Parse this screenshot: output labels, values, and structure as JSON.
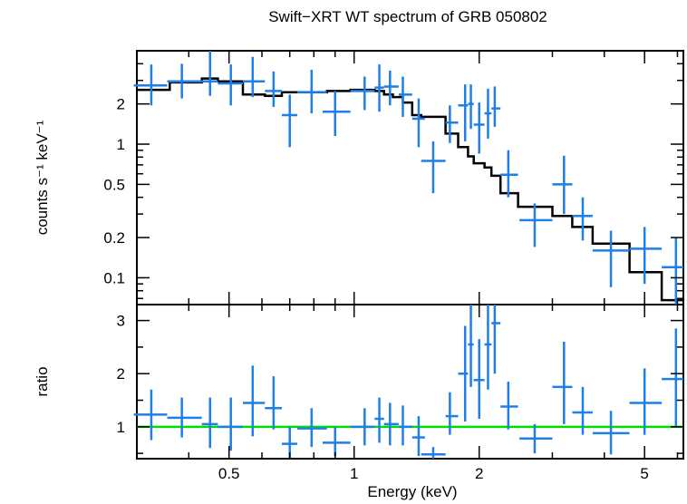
{
  "title": "Swift−XRT WT spectrum of GRB 050802",
  "colors": {
    "data": "#1e7fe6",
    "model": "#000000",
    "unity": "#00e000",
    "axes": "#000000"
  },
  "chart_data": [
    {
      "type": "scatter",
      "panel": "spectrum",
      "title": "Swift−XRT WT spectrum of GRB 050802",
      "ylabel": "counts s⁻¹ keV⁻¹",
      "xscale": "log",
      "yscale": "log",
      "xlim": [
        0.3,
        6.2
      ],
      "ylim": [
        0.063,
        5.0
      ],
      "yticks": [
        0.1,
        0.2,
        0.5,
        1,
        2
      ],
      "yticklabels": [
        "0.1",
        "0.2",
        "0.5",
        "1",
        "2"
      ],
      "series": [
        {
          "kind": "errorbar",
          "points": [
            {
              "x": 0.325,
              "xerr": [
                0.295,
                0.355
              ],
              "y": 2.75,
              "yerr": [
                1.95,
                3.95
              ]
            },
            {
              "x": 0.385,
              "xerr": [
                0.355,
                0.43
              ],
              "y": 2.95,
              "yerr": [
                2.2,
                4.0
              ]
            },
            {
              "x": 0.45,
              "xerr": [
                0.43,
                0.47
              ],
              "y": 2.95,
              "yerr": [
                2.3,
                5.0
              ]
            },
            {
              "x": 0.505,
              "xerr": [
                0.47,
                0.54
              ],
              "y": 2.85,
              "yerr": [
                1.95,
                3.95
              ]
            },
            {
              "x": 0.57,
              "xerr": [
                0.54,
                0.61
              ],
              "y": 2.95,
              "yerr": [
                2.25,
                4.5
              ]
            },
            {
              "x": 0.64,
              "xerr": [
                0.61,
                0.67
              ],
              "y": 2.5,
              "yerr": [
                1.9,
                3.5
              ]
            },
            {
              "x": 0.7,
              "xerr": [
                0.67,
                0.73
              ],
              "y": 1.65,
              "yerr": [
                0.95,
                2.35
              ]
            },
            {
              "x": 0.79,
              "xerr": [
                0.73,
                0.86
              ],
              "y": 2.45,
              "yerr": [
                1.7,
                3.6
              ]
            },
            {
              "x": 0.9,
              "xerr": [
                0.84,
                0.98
              ],
              "y": 1.75,
              "yerr": [
                1.15,
                2.5
              ]
            },
            {
              "x": 1.06,
              "xerr": [
                0.98,
                1.12
              ],
              "y": 2.5,
              "yerr": [
                1.8,
                3.2
              ]
            },
            {
              "x": 1.15,
              "xerr": [
                1.12,
                1.18
              ],
              "y": 2.65,
              "yerr": [
                1.75,
                3.95
              ]
            },
            {
              "x": 1.22,
              "xerr": [
                1.18,
                1.28
              ],
              "y": 2.7,
              "yerr": [
                1.95,
                3.55
              ]
            },
            {
              "x": 1.31,
              "xerr": [
                1.28,
                1.38
              ],
              "y": 2.35,
              "yerr": [
                1.6,
                3.2
              ]
            },
            {
              "x": 1.43,
              "xerr": [
                1.38,
                1.48
              ],
              "y": 1.55,
              "yerr": [
                0.95,
                2.2
              ]
            },
            {
              "x": 1.55,
              "xerr": [
                1.45,
                1.66
              ],
              "y": 0.75,
              "yerr": [
                0.43,
                1.05
              ]
            },
            {
              "x": 1.7,
              "xerr": [
                1.66,
                1.78
              ],
              "y": 1.45,
              "yerr": [
                1.02,
                1.95
              ]
            },
            {
              "x": 1.85,
              "xerr": [
                1.78,
                1.88
              ],
              "y": 1.95,
              "yerr": [
                1.05,
                2.8
              ]
            },
            {
              "x": 1.91,
              "xerr": [
                1.88,
                1.94
              ],
              "y": 2.0,
              "yerr": [
                1.3,
                2.8
              ]
            },
            {
              "x": 2.0,
              "xerr": [
                1.94,
                2.06
              ],
              "y": 1.4,
              "yerr": [
                0.85,
                2.05
              ]
            },
            {
              "x": 2.1,
              "xerr": [
                2.06,
                2.14
              ],
              "y": 1.7,
              "yerr": [
                1.1,
                2.6
              ]
            },
            {
              "x": 2.18,
              "xerr": [
                2.14,
                2.25
              ],
              "y": 1.85,
              "yerr": [
                1.35,
                2.7
              ]
            },
            {
              "x": 2.35,
              "xerr": [
                2.25,
                2.48
              ],
              "y": 0.59,
              "yerr": [
                0.4,
                0.9
              ]
            },
            {
              "x": 2.72,
              "xerr": [
                2.5,
                3.0
              ],
              "y": 0.27,
              "yerr": [
                0.17,
                0.36
              ]
            },
            {
              "x": 3.2,
              "xerr": [
                3.0,
                3.35
              ],
              "y": 0.5,
              "yerr": [
                0.3,
                0.82
              ]
            },
            {
              "x": 3.55,
              "xerr": [
                3.35,
                3.75
              ],
              "y": 0.29,
              "yerr": [
                0.19,
                0.4
              ]
            },
            {
              "x": 4.15,
              "xerr": [
                3.75,
                4.6
              ],
              "y": 0.16,
              "yerr": [
                0.085,
                0.225
              ]
            },
            {
              "x": 5.0,
              "xerr": [
                4.6,
                5.5
              ],
              "y": 0.165,
              "yerr": [
                0.09,
                0.24
              ]
            },
            {
              "x": 5.95,
              "xerr": [
                5.5,
                6.2
              ],
              "y": 0.12,
              "yerr": [
                0.063,
                0.2
              ]
            }
          ]
        },
        {
          "kind": "model-step",
          "edges": [
            0.3,
            0.34,
            0.36,
            0.43,
            0.47,
            0.54,
            0.61,
            0.67,
            0.73,
            0.86,
            0.98,
            1.12,
            1.18,
            1.24,
            1.31,
            1.38,
            1.45,
            1.66,
            1.78,
            1.88,
            1.94,
            2.06,
            2.14,
            2.25,
            2.48,
            3.0,
            3.35,
            3.75,
            4.6,
            5.5,
            6.2
          ],
          "values": [
            2.55,
            2.55,
            2.9,
            3.1,
            2.95,
            2.35,
            2.3,
            2.45,
            2.45,
            2.5,
            2.55,
            2.5,
            2.35,
            2.25,
            2.05,
            1.65,
            1.6,
            1.2,
            0.95,
            0.81,
            0.72,
            0.67,
            0.58,
            0.43,
            0.34,
            0.29,
            0.24,
            0.18,
            0.11,
            0.068
          ]
        }
      ]
    },
    {
      "type": "scatter",
      "panel": "ratio",
      "xlabel": "Energy (keV)",
      "ylabel": "ratio",
      "xscale": "log",
      "yscale": "linear",
      "xlim": [
        0.3,
        6.2
      ],
      "ylim": [
        0.4,
        3.3
      ],
      "xticks": [
        0.5,
        1,
        2,
        5
      ],
      "xticklabels": [
        "0.5",
        "1",
        "2",
        "5"
      ],
      "yticks": [
        1,
        2,
        3
      ],
      "yticklabels": [
        "1",
        "2",
        "3"
      ],
      "reference_line": 1.0,
      "series": [
        {
          "kind": "errorbar",
          "points": [
            {
              "x": 0.325,
              "xerr": [
                0.295,
                0.355
              ],
              "y": 1.23,
              "yerr": [
                0.75,
                1.7
              ]
            },
            {
              "x": 0.385,
              "xerr": [
                0.355,
                0.43
              ],
              "y": 1.17,
              "yerr": [
                0.8,
                1.55
              ]
            },
            {
              "x": 0.45,
              "xerr": [
                0.43,
                0.47
              ],
              "y": 1.05,
              "yerr": [
                0.6,
                1.55
              ]
            },
            {
              "x": 0.505,
              "xerr": [
                0.47,
                0.54
              ],
              "y": 1.0,
              "yerr": [
                0.55,
                1.55
              ]
            },
            {
              "x": 0.57,
              "xerr": [
                0.54,
                0.61
              ],
              "y": 1.45,
              "yerr": [
                0.82,
                2.15
              ]
            },
            {
              "x": 0.64,
              "xerr": [
                0.61,
                0.67
              ],
              "y": 1.35,
              "yerr": [
                0.95,
                1.95
              ]
            },
            {
              "x": 0.7,
              "xerr": [
                0.67,
                0.73
              ],
              "y": 0.68,
              "yerr": [
                0.4,
                1.0
              ]
            },
            {
              "x": 0.79,
              "xerr": [
                0.73,
                0.86
              ],
              "y": 0.97,
              "yerr": [
                0.62,
                1.35
              ]
            },
            {
              "x": 0.9,
              "xerr": [
                0.84,
                0.98
              ],
              "y": 0.7,
              "yerr": [
                0.45,
                1.0
              ]
            },
            {
              "x": 1.06,
              "xerr": [
                0.98,
                1.12
              ],
              "y": 1.0,
              "yerr": [
                0.65,
                1.35
              ]
            },
            {
              "x": 1.15,
              "xerr": [
                1.12,
                1.18
              ],
              "y": 1.15,
              "yerr": [
                0.7,
                1.55
              ]
            },
            {
              "x": 1.22,
              "xerr": [
                1.18,
                1.28
              ],
              "y": 1.05,
              "yerr": [
                0.65,
                1.45
              ]
            },
            {
              "x": 1.31,
              "xerr": [
                1.28,
                1.38
              ],
              "y": 1.0,
              "yerr": [
                0.65,
                1.4
              ]
            },
            {
              "x": 1.43,
              "xerr": [
                1.38,
                1.48
              ],
              "y": 0.8,
              "yerr": [
                0.45,
                1.2
              ]
            },
            {
              "x": 1.55,
              "xerr": [
                1.45,
                1.66
              ],
              "y": 0.48,
              "yerr": [
                0.4,
                0.62
              ]
            },
            {
              "x": 1.7,
              "xerr": [
                1.66,
                1.78
              ],
              "y": 1.2,
              "yerr": [
                0.85,
                1.65
              ]
            },
            {
              "x": 1.85,
              "xerr": [
                1.78,
                1.88
              ],
              "y": 2.0,
              "yerr": [
                1.1,
                2.9
              ]
            },
            {
              "x": 1.91,
              "xerr": [
                1.88,
                1.94
              ],
              "y": 2.55,
              "yerr": [
                1.75,
                3.3
              ]
            },
            {
              "x": 2.0,
              "xerr": [
                1.94,
                2.06
              ],
              "y": 1.88,
              "yerr": [
                1.15,
                2.65
              ]
            },
            {
              "x": 2.1,
              "xerr": [
                2.06,
                2.14
              ],
              "y": 2.55,
              "yerr": [
                1.7,
                3.3
              ]
            },
            {
              "x": 2.18,
              "xerr": [
                2.14,
                2.25
              ],
              "y": 2.95,
              "yerr": [
                2.0,
                3.3
              ]
            },
            {
              "x": 2.35,
              "xerr": [
                2.25,
                2.48
              ],
              "y": 1.38,
              "yerr": [
                0.95,
                1.85
              ]
            },
            {
              "x": 2.72,
              "xerr": [
                2.5,
                3.0
              ],
              "y": 0.78,
              "yerr": [
                0.5,
                1.05
              ]
            },
            {
              "x": 3.2,
              "xerr": [
                3.0,
                3.35
              ],
              "y": 1.75,
              "yerr": [
                1.05,
                2.6
              ]
            },
            {
              "x": 3.55,
              "xerr": [
                3.35,
                3.75
              ],
              "y": 1.27,
              "yerr": [
                0.85,
                1.75
              ]
            },
            {
              "x": 4.15,
              "xerr": [
                3.75,
                4.6
              ],
              "y": 0.88,
              "yerr": [
                0.48,
                1.3
              ]
            },
            {
              "x": 5.0,
              "xerr": [
                4.6,
                5.5
              ],
              "y": 1.45,
              "yerr": [
                0.85,
                2.1
              ]
            },
            {
              "x": 5.95,
              "xerr": [
                5.5,
                6.2
              ],
              "y": 1.9,
              "yerr": [
                1.0,
                2.85
              ]
            }
          ]
        }
      ]
    }
  ]
}
